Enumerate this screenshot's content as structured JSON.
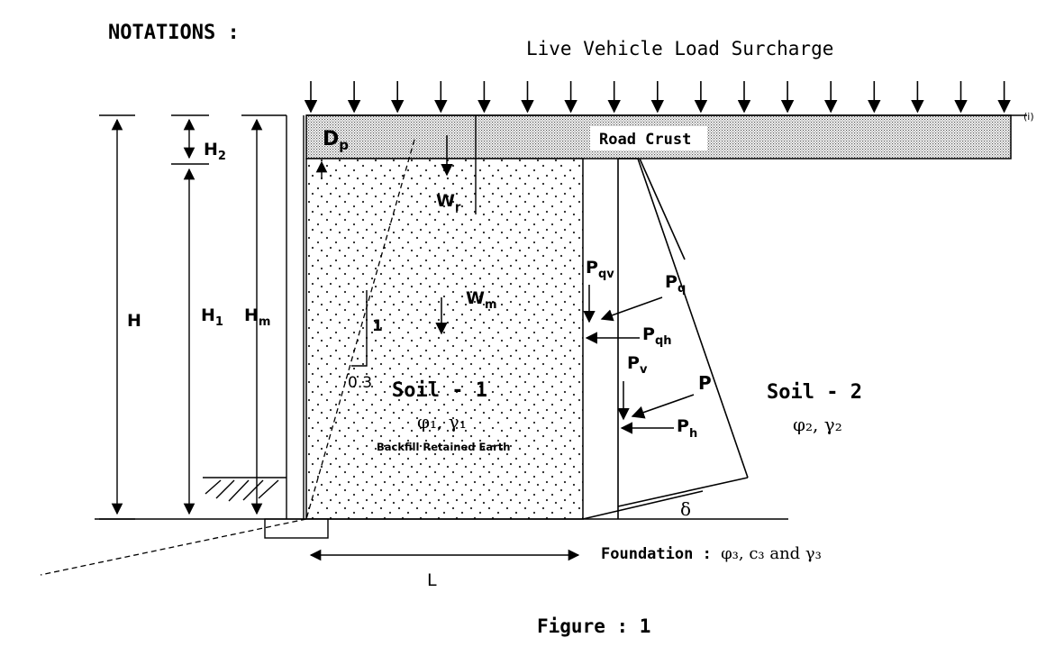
{
  "title": "NOTATIONS :",
  "surcharge_label": "Live Vehicle Load Surcharge",
  "surcharge_marker": "(i)",
  "labels": {
    "H": "H",
    "H1": "H",
    "H1_sub": "1",
    "H2": "H",
    "H2_sub": "2",
    "Hm": "H",
    "Hm_sub": "m",
    "Dp": "D",
    "Dp_sub": "p",
    "Wr": "W",
    "Wr_sub": "r",
    "Wm": "W",
    "Wm_sub": "m",
    "slope_rise": "1",
    "slope_run": "0.3",
    "road_crust": "Road Crust",
    "Pqv": "P",
    "Pqv_sub": "qv",
    "Pq": "P",
    "Pq_sub": "q",
    "Pqh": "P",
    "Pqh_sub": "qh",
    "Pv": "P",
    "Pv_sub": "v",
    "P": "P",
    "Ph": "P",
    "Ph_sub": "h",
    "delta": "δ",
    "L": "L"
  },
  "soil1": {
    "name": "Soil - 1",
    "params": "φ₁, γ₁",
    "desc": "Backfill Retained Earth"
  },
  "soil2": {
    "name": "Soil - 2",
    "params": "φ₂, γ₂"
  },
  "foundation": {
    "prefix": "Foundation :",
    "params": "φ₃, c₃ and γ₃"
  },
  "caption": "Figure : 1"
}
